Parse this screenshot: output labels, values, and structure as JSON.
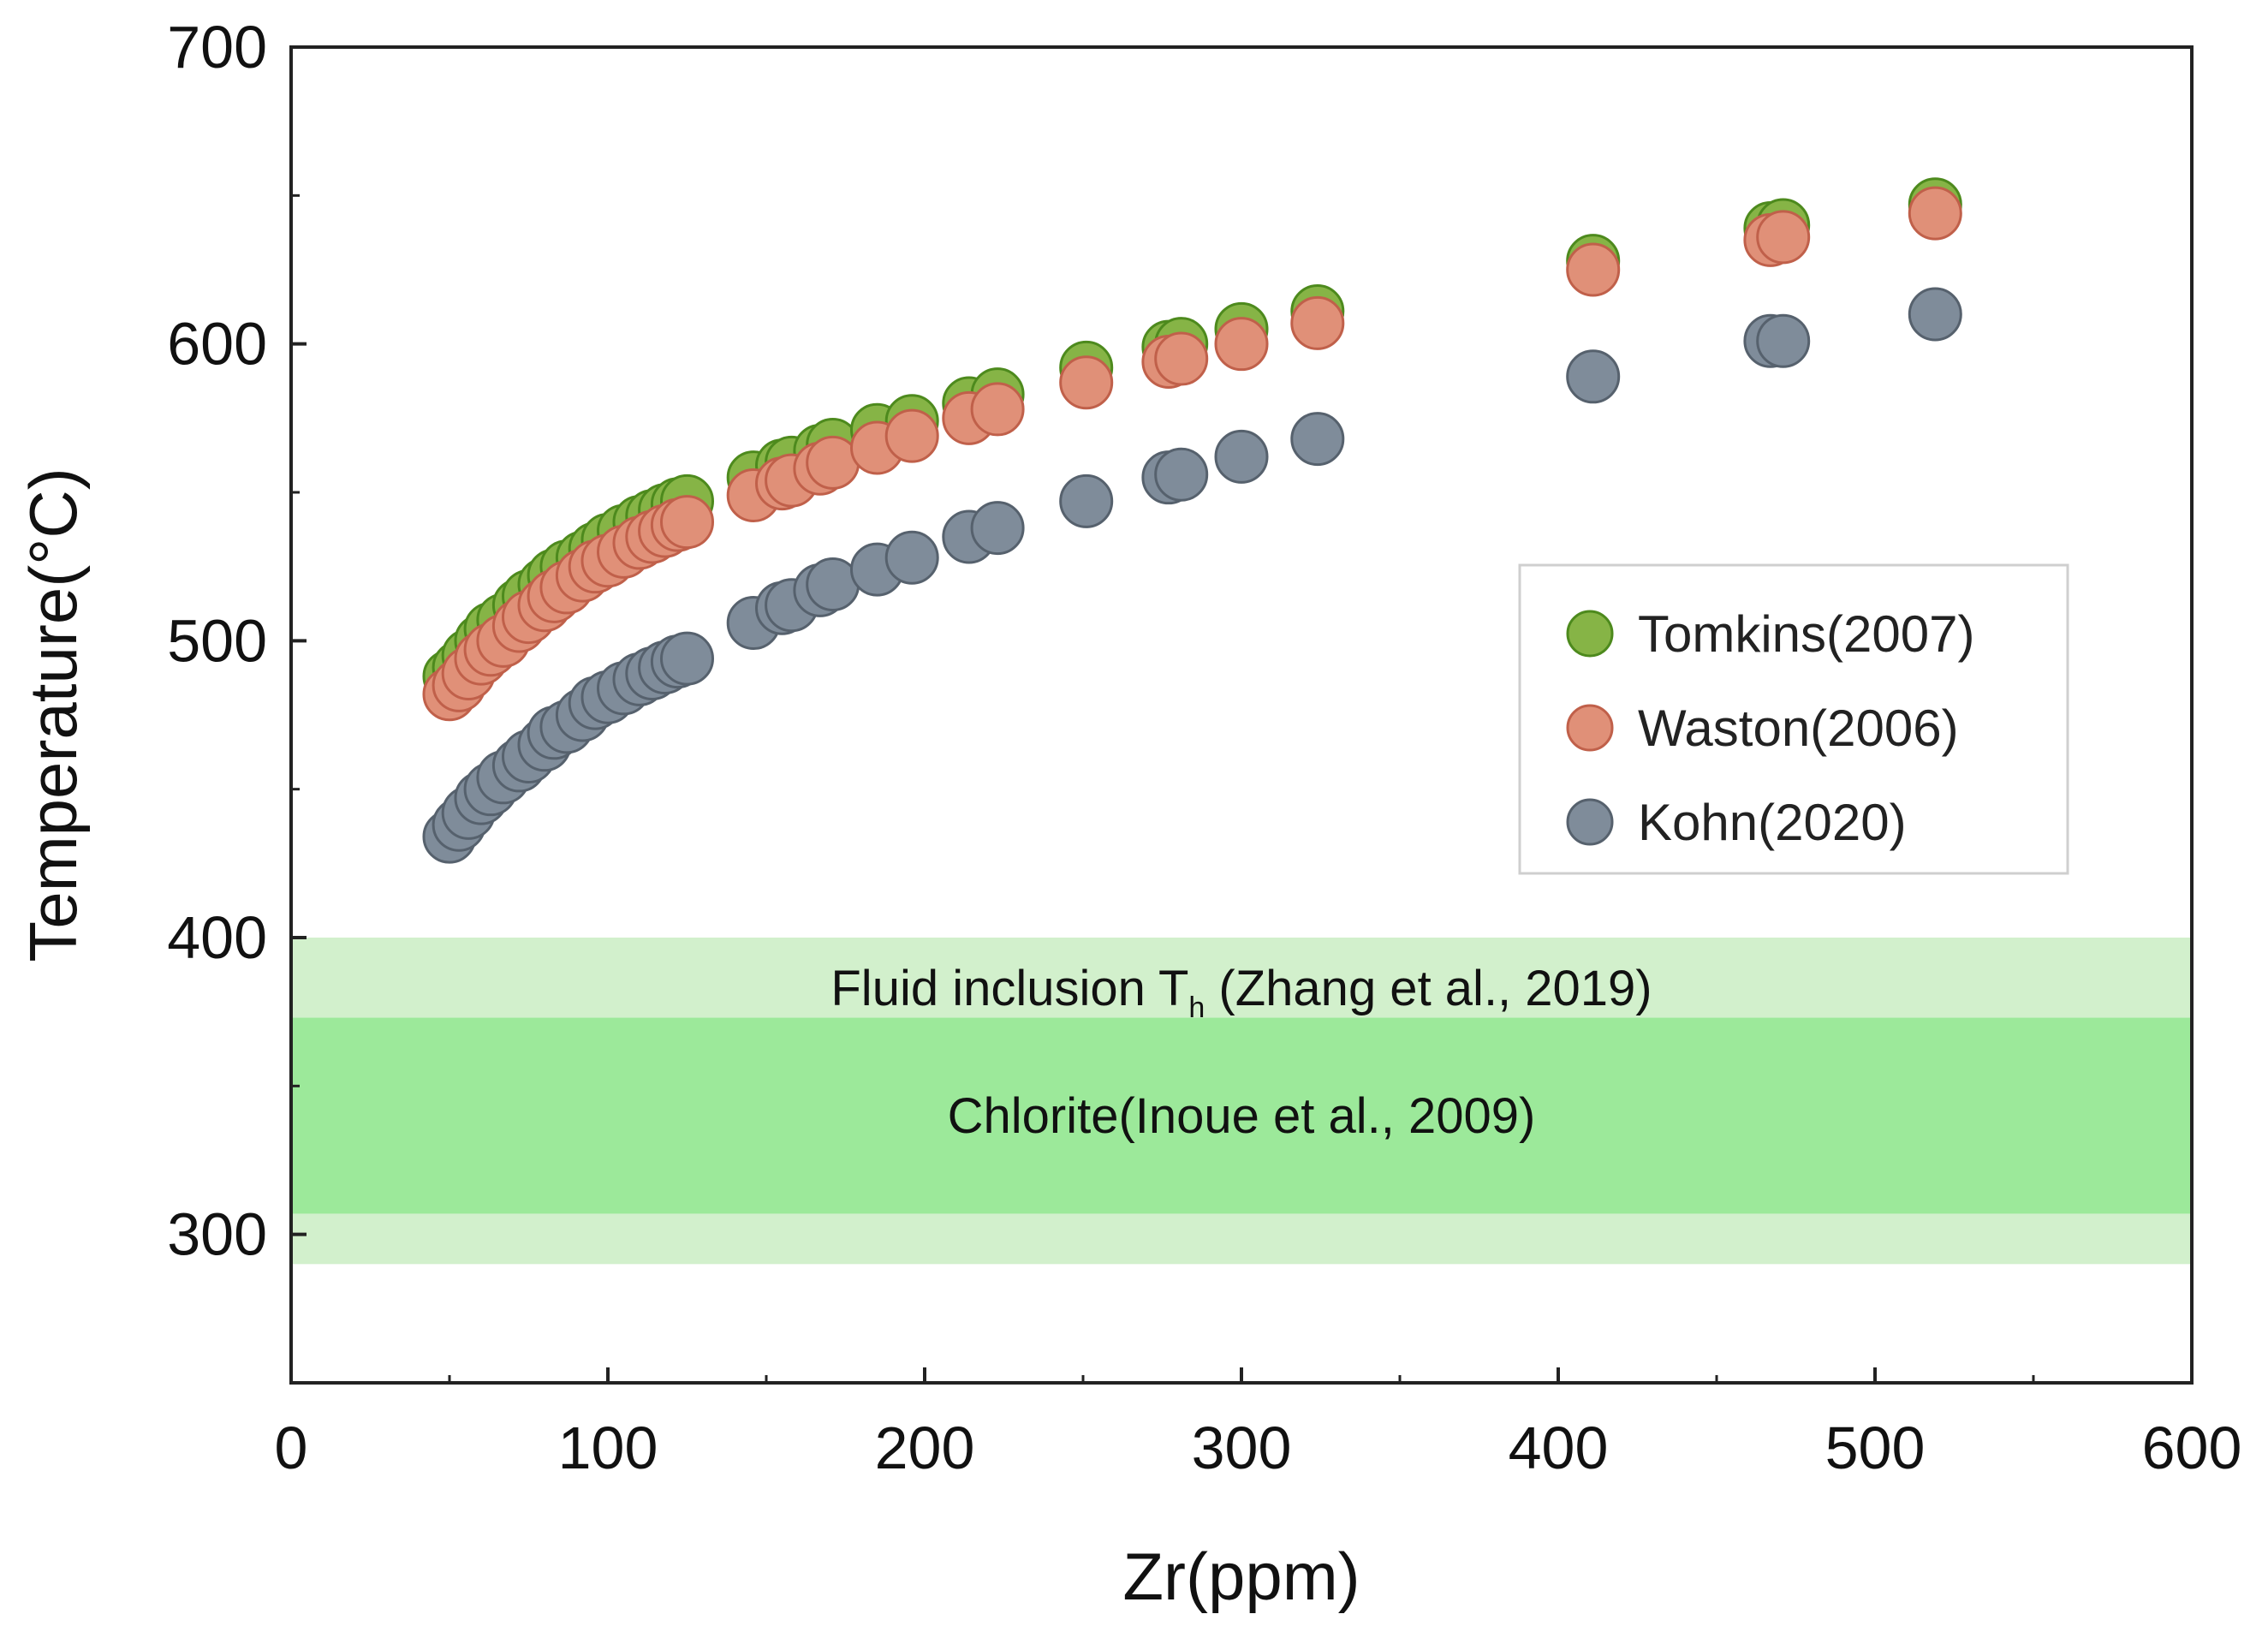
{
  "chart_data": {
    "type": "scatter",
    "title": "",
    "xlabel": "Zr(ppm)",
    "ylabel": "Temperature(°C)",
    "xlim": [
      0,
      600
    ],
    "ylim": [
      250,
      700
    ],
    "xticks": [
      0,
      100,
      200,
      300,
      400,
      500,
      600
    ],
    "yticks": [
      300,
      400,
      500,
      600,
      700
    ],
    "y_minor_ticks": [
      350,
      450,
      550,
      650
    ],
    "x_minor_ticks": [
      50,
      150,
      250,
      350,
      450,
      550
    ],
    "grid": false,
    "legend_position": "right-middle",
    "bands": [
      {
        "name": "Fluid inclusion Th",
        "label_main": "Fluid inclusion T",
        "label_sub": "h",
        "label_rest": " (Zhang et al., 2019)",
        "range": [
          290,
          400
        ],
        "color": "#d2f0cc"
      },
      {
        "name": "Chlorite",
        "label": "Chlorite(Inoue et al., 2009)",
        "range": [
          307,
          373
        ],
        "color": "#9ce99a"
      }
    ],
    "x": [
      50,
      53,
      56,
      60,
      63,
      67,
      72,
      75,
      80,
      83,
      87,
      92,
      96,
      100,
      105,
      110,
      114,
      118,
      122,
      125,
      146,
      155,
      158,
      167,
      171,
      185,
      196,
      214,
      223,
      251,
      277,
      281,
      300,
      324,
      411,
      467,
      471,
      519
    ],
    "series": [
      {
        "name": "Tomkins(2007)",
        "color": "#86b446",
        "edge": "#4d8a1d",
        "values": [
          488,
          491,
          495,
          500,
          504,
          507,
          512,
          515,
          519,
          522,
          525,
          528,
          531,
          534,
          537,
          540,
          542,
          544,
          546,
          547,
          555,
          559,
          560,
          564,
          566,
          571,
          574,
          580,
          583,
          592,
          599,
          600,
          605,
          611,
          628,
          639,
          640,
          647
        ]
      },
      {
        "name": "Waston(2006)",
        "color": "#e09078",
        "edge": "#c0604a",
        "values": [
          482,
          485,
          489,
          494,
          497,
          500,
          505,
          508,
          512,
          515,
          518,
          522,
          525,
          527,
          530,
          533,
          535,
          537,
          539,
          540,
          549,
          553,
          554,
          558,
          560,
          565,
          569,
          575,
          578,
          587,
          594,
          595,
          600,
          607,
          625,
          635,
          636,
          644
        ]
      },
      {
        "name": "Kohn(2020)",
        "color": "#7f8c9a",
        "edge": "#56616d",
        "values": [
          434,
          438,
          442,
          447,
          450,
          454,
          458,
          461,
          465,
          469,
          471,
          475,
          479,
          481,
          484,
          487,
          489,
          491,
          493,
          494,
          506,
          511,
          512,
          517,
          519,
          524,
          528,
          535,
          538,
          547,
          555,
          556,
          562,
          568,
          589,
          601,
          601,
          610
        ]
      }
    ]
  }
}
